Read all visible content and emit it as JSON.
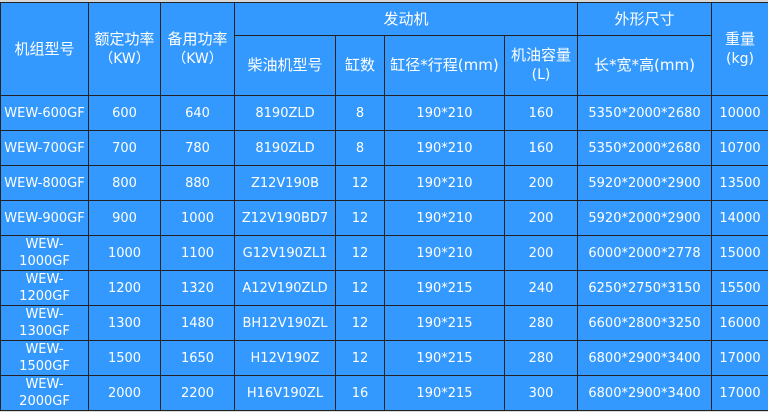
{
  "header": {
    "model": "机组型号",
    "rated_power": "额定功率",
    "rated_power_unit": "（KW）",
    "standby_power": "备用功率",
    "standby_power_unit": "（KW）",
    "engine_group": "发动机",
    "engine_model": "柴油机型号",
    "cylinders": "缸数",
    "bore_stroke": "缸径*行程(mm)",
    "oil_capacity": "机油容量",
    "oil_capacity_unit": "(L)",
    "dimensions_group": "外形尺寸",
    "dimensions": "长*宽*高(mm)",
    "weight": "重量",
    "weight_unit": "(kg)"
  },
  "rows": [
    [
      "WEW-600GF",
      "600",
      "640",
      "8190ZLD",
      "8",
      "190*210",
      "160",
      "5350*2000*2680",
      "10000"
    ],
    [
      "WEW-700GF",
      "700",
      "780",
      "8190ZLD",
      "8",
      "190*210",
      "160",
      "5350*2000*2680",
      "10700"
    ],
    [
      "WEW-800GF",
      "800",
      "880",
      "Z12V190B",
      "12",
      "190*210",
      "200",
      "5920*2000*2900",
      "13500"
    ],
    [
      "WEW-900GF",
      "900",
      "1000",
      "Z12V190BD7",
      "12",
      "190*210",
      "200",
      "5920*2000*2900",
      "14000"
    ],
    [
      "WEW-1000GF",
      "1000",
      "1100",
      "G12V190ZL1",
      "12",
      "190*210",
      "200",
      "6000*2000*2778",
      "15000"
    ],
    [
      "WEW-1200GF",
      "1200",
      "1320",
      "A12V190ZLD",
      "12",
      "190*215",
      "240",
      "6250*2750*3150",
      "15500"
    ],
    [
      "WEW-1300GF",
      "1300",
      "1480",
      "BH12V190ZL",
      "12",
      "190*215",
      "280",
      "6600*2800*3250",
      "16000"
    ],
    [
      "WEW-1500GF",
      "1500",
      "1650",
      "H12V190Z",
      "12",
      "190*215",
      "280",
      "6800*2900*3400",
      "17000"
    ],
    [
      "WEW-2000GF",
      "2000",
      "2200",
      "H16V190ZL",
      "16",
      "190*215",
      "300",
      "6800*2900*3400",
      "17000"
    ]
  ],
  "colors": {
    "background": "#3399ff",
    "border": "#222222",
    "text": "#ffffff"
  }
}
